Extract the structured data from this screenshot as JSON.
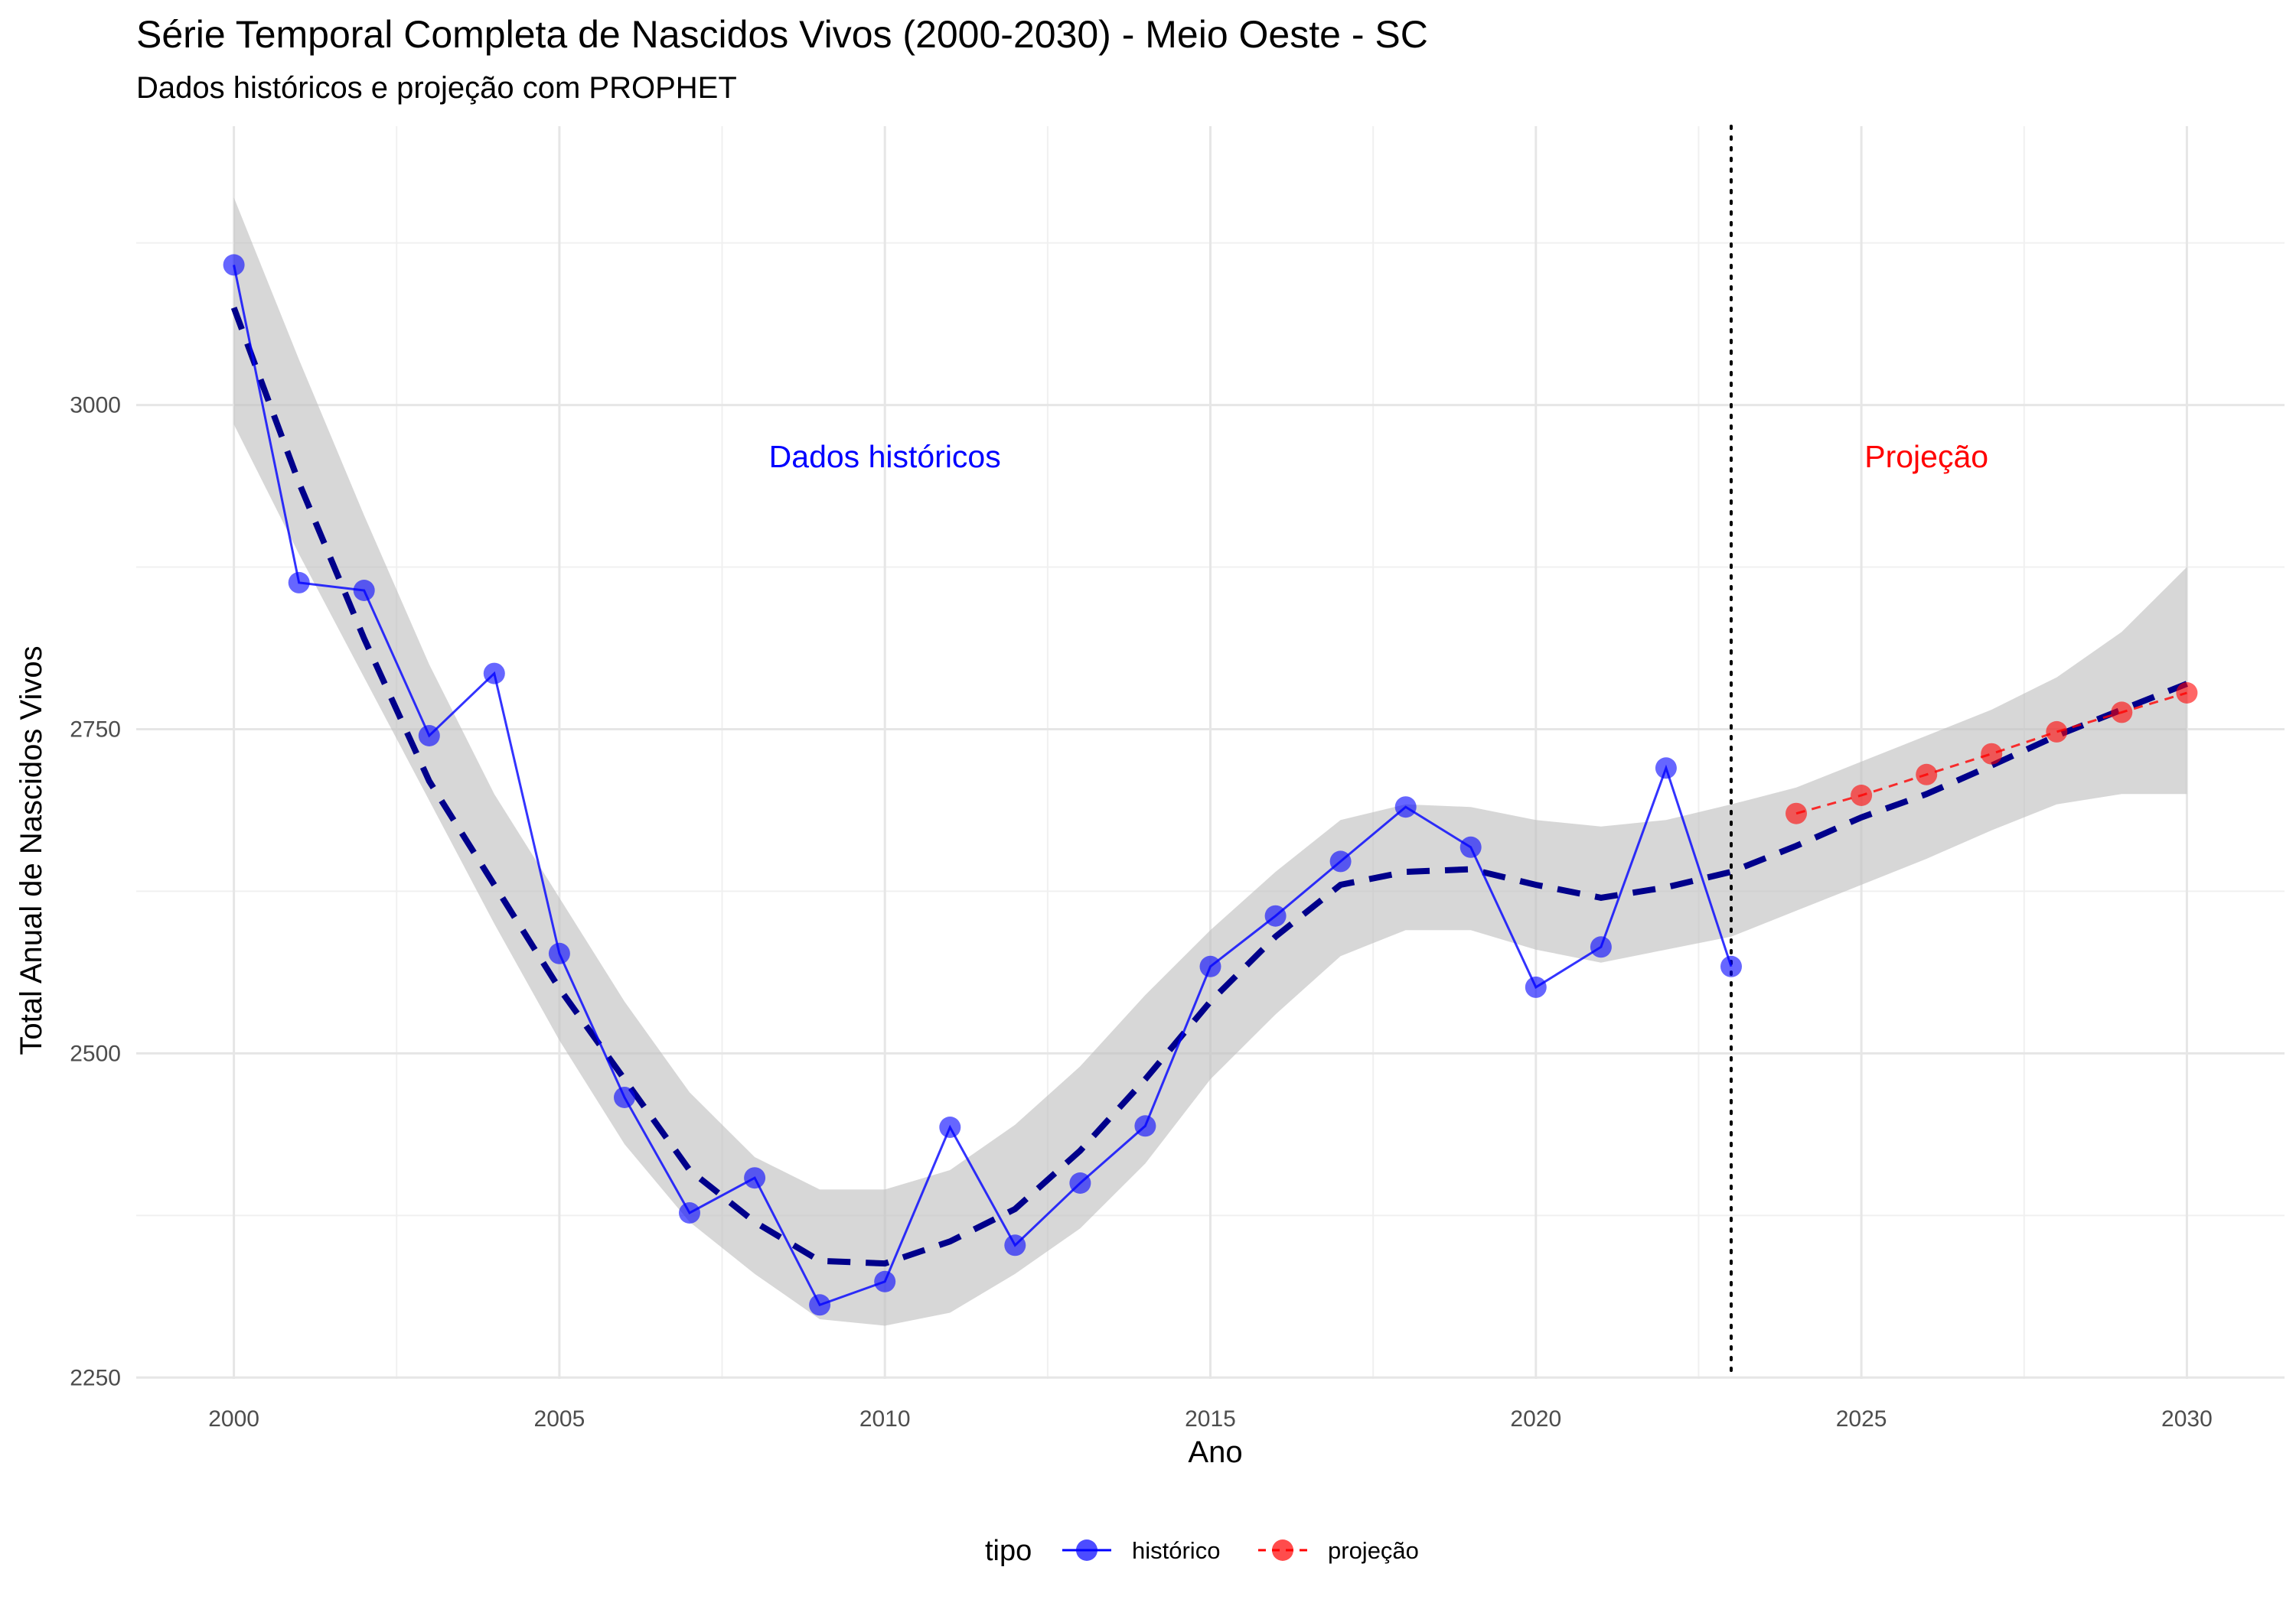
{
  "chart_data": {
    "type": "line",
    "title": "Série Temporal Completa de Nascidos Vivos (2000-2030) -  Meio Oeste - SC",
    "subtitle": "Dados históricos e projeção com PROPHET",
    "xlabel": "Ano",
    "ylabel": "Total Anual de Nascidos Vivos",
    "xlim": [
      1998.5,
      2031.5
    ],
    "ylim": [
      2249,
      3215
    ],
    "x_ticks": [
      2000,
      2005,
      2010,
      2015,
      2020,
      2025,
      2030
    ],
    "y_ticks": [
      2250,
      2500,
      2750,
      3000
    ],
    "grid": true,
    "legend": {
      "title": "tipo",
      "position": "bottom"
    },
    "annotations": [
      {
        "text": "Dados históricos",
        "x": 2010,
        "y": 2952,
        "color": "#0000ff"
      },
      {
        "text": "Projeção",
        "x": 2026,
        "y": 2952,
        "color": "#ff0000"
      }
    ],
    "vline": {
      "x": 2023,
      "style": "dotted"
    },
    "series": [
      {
        "name": "histórico",
        "color": "#0000ff",
        "style": "solid",
        "x": [
          2000,
          2001,
          2002,
          2003,
          2004,
          2005,
          2006,
          2007,
          2008,
          2009,
          2010,
          2011,
          2012,
          2013,
          2014,
          2015,
          2016,
          2017,
          2018,
          2019,
          2020,
          2021,
          2022,
          2023
        ],
        "y": [
          3108,
          2863,
          2857,
          2745,
          2793,
          2577,
          2466,
          2377,
          2404,
          2306,
          2324,
          2443,
          2352,
          2400,
          2444,
          2567,
          2606,
          2648,
          2690,
          2659,
          2551,
          2582,
          2720,
          2567
        ]
      },
      {
        "name": "projeção",
        "color": "#ff0000",
        "style": "dashed",
        "x": [
          2024,
          2025,
          2026,
          2027,
          2028,
          2029,
          2030
        ],
        "y": [
          2685,
          2699,
          2715,
          2731,
          2748,
          2763,
          2778
        ]
      }
    ],
    "trend": {
      "color": "#00008b",
      "style": "dashed",
      "x": [
        2000,
        2001,
        2002,
        2003,
        2004,
        2005,
        2006,
        2007,
        2008,
        2009,
        2010,
        2011,
        2012,
        2013,
        2014,
        2015,
        2016,
        2017,
        2018,
        2019,
        2020,
        2021,
        2022,
        2023,
        2024,
        2025,
        2026,
        2027,
        2028,
        2029,
        2030
      ],
      "y": [
        3075,
        2940,
        2820,
        2710,
        2630,
        2550,
        2480,
        2410,
        2370,
        2340,
        2338,
        2355,
        2380,
        2425,
        2480,
        2540,
        2590,
        2630,
        2640,
        2642,
        2630,
        2620,
        2628,
        2640,
        2660,
        2682,
        2700,
        2722,
        2745,
        2765,
        2785
      ],
      "lower": [
        2985,
        2885,
        2790,
        2695,
        2600,
        2510,
        2430,
        2370,
        2330,
        2295,
        2290,
        2300,
        2330,
        2365,
        2415,
        2480,
        2530,
        2575,
        2595,
        2595,
        2580,
        2570,
        2580,
        2590,
        2610,
        2630,
        2650,
        2672,
        2692,
        2700,
        2700
      ],
      "upper": [
        3160,
        3035,
        2915,
        2800,
        2700,
        2620,
        2540,
        2470,
        2420,
        2395,
        2395,
        2410,
        2445,
        2490,
        2545,
        2595,
        2640,
        2680,
        2692,
        2690,
        2680,
        2675,
        2680,
        2692,
        2705,
        2725,
        2745,
        2765,
        2790,
        2825,
        2875
      ]
    }
  }
}
